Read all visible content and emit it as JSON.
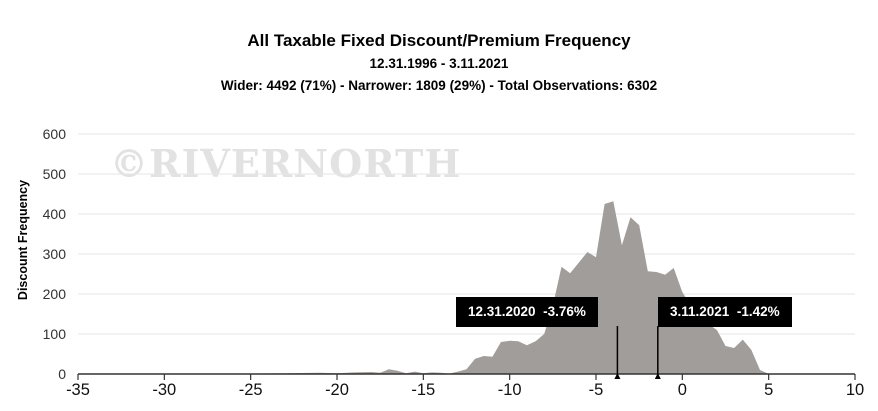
{
  "header": {
    "title": "All Taxable Fixed Discount/Premium Frequency",
    "date_range": "12.31.1996 - 3.11.2021",
    "summary": "Wider: 4492 (71%) - Narrower: 1809 (29%) - Total Observations: 6302"
  },
  "watermark": "©RIVERNORTH",
  "callouts": {
    "start": {
      "date": "12.31.2020",
      "value": "-3.76%"
    },
    "end": {
      "date": "3.11.2021",
      "value": "-1.42%"
    }
  },
  "colors": {
    "area": "#a19d9a",
    "grid": "#e6e6e6",
    "callout_bg": "#000000"
  },
  "chart_data": {
    "type": "area",
    "title": "All Taxable Fixed Discount/Premium Frequency",
    "xlabel": "",
    "ylabel": "Discount Frequency",
    "xlim": [
      -35,
      10
    ],
    "ylim": [
      0,
      600
    ],
    "xticks": [
      -35,
      -30,
      -25,
      -20,
      -15,
      -10,
      -5,
      0,
      5,
      10
    ],
    "yticks": [
      0,
      100,
      200,
      300,
      400,
      500,
      600
    ],
    "grid": true,
    "legend": "none",
    "markers": [
      {
        "x": -3.76,
        "label": "12.31.2020  -3.76%"
      },
      {
        "x": -1.42,
        "label": "3.11.2021  -1.42%"
      }
    ],
    "series": [
      {
        "x": [
          -35,
          -33,
          -30,
          -27,
          -25,
          -23,
          -21,
          -20,
          -19,
          -18,
          -17.5,
          -17,
          -16.5,
          -16,
          -15.5,
          -15,
          -14.5,
          -14,
          -13.5,
          -13,
          -12.5,
          -12,
          -11.5,
          -11,
          -10.5,
          -10,
          -9.5,
          -9,
          -8.5,
          -8,
          -7.5,
          -7,
          -6.5,
          -6,
          -5.5,
          -5,
          -4.5,
          -4,
          -3.5,
          -3,
          -2.5,
          -2,
          -1.5,
          -1,
          -0.5,
          0,
          0.5,
          1,
          1.5,
          2,
          2.5,
          3,
          3.5,
          4,
          4.5,
          5,
          6,
          7,
          10
        ],
        "values": [
          0,
          0,
          1,
          0,
          1,
          2,
          3,
          2,
          4,
          5,
          3,
          12,
          8,
          2,
          6,
          2,
          4,
          3,
          1,
          6,
          12,
          38,
          45,
          43,
          80,
          83,
          82,
          72,
          82,
          100,
          170,
          268,
          252,
          278,
          305,
          292,
          425,
          432,
          322,
          392,
          372,
          257,
          255,
          248,
          265,
          205,
          170,
          125,
          125,
          110,
          70,
          65,
          86,
          60,
          10,
          0,
          0,
          0,
          0
        ]
      }
    ]
  }
}
